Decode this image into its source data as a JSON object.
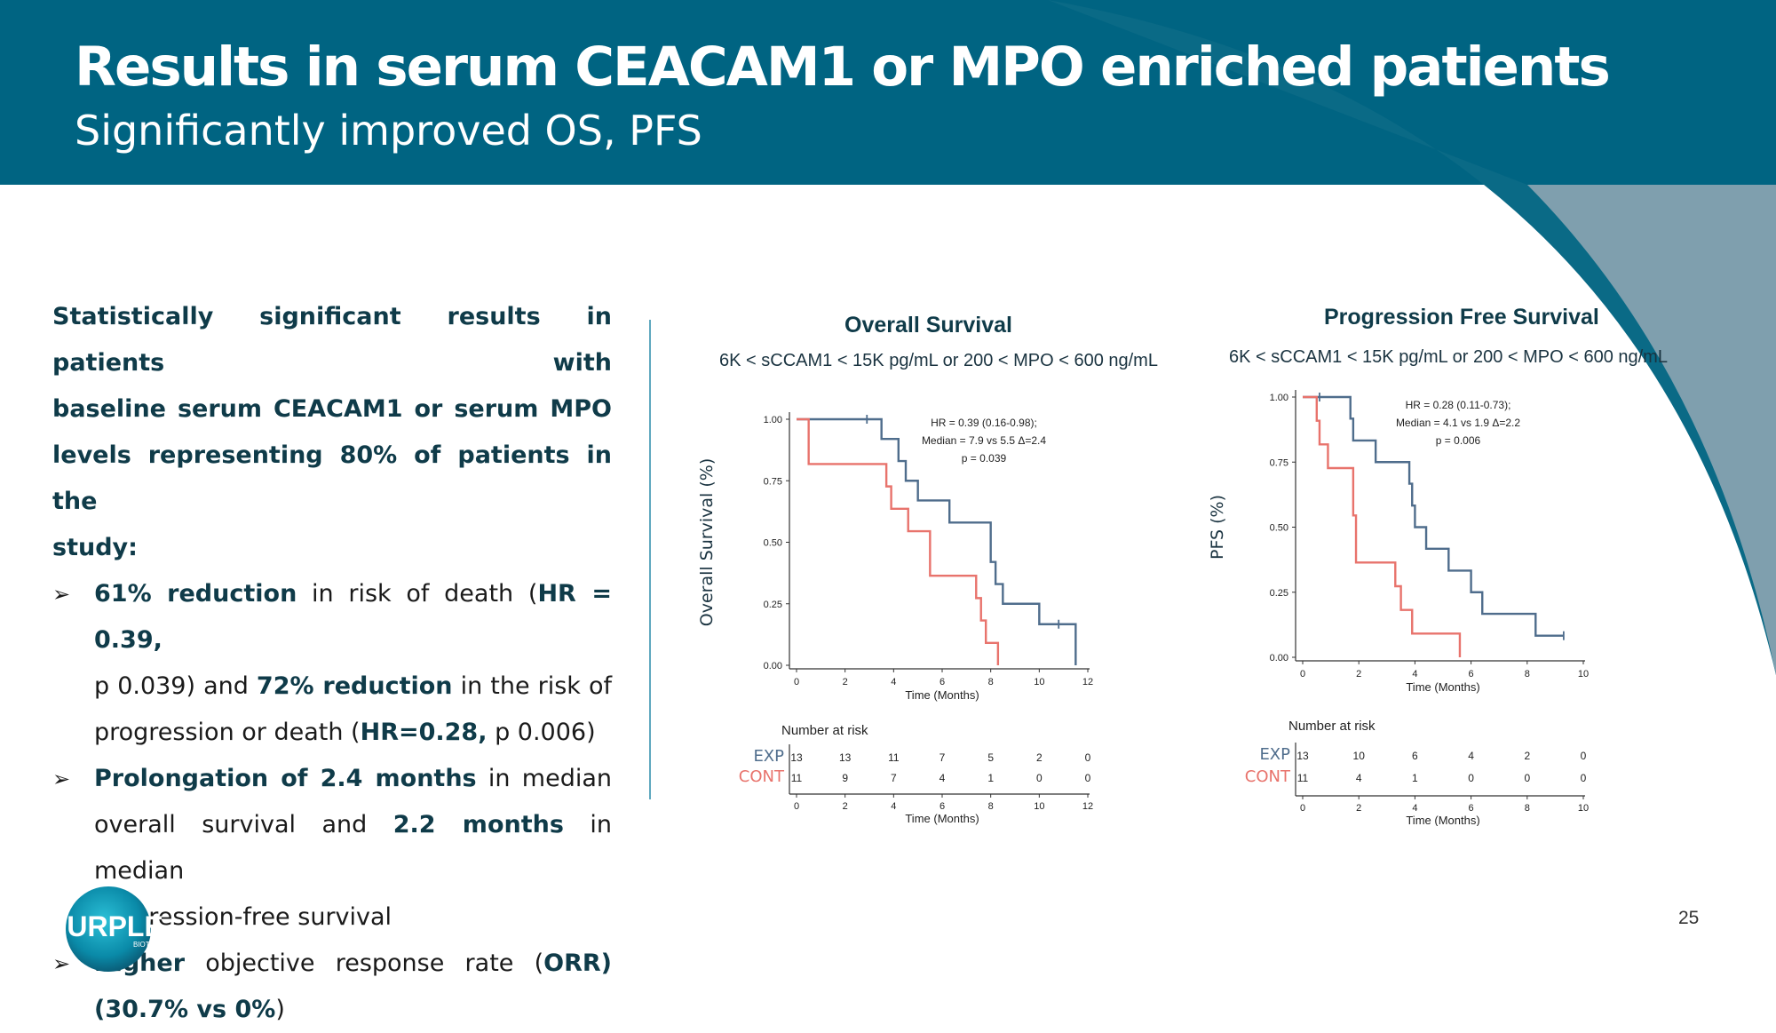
{
  "header": {
    "title": "Results in serum CEACAM1 or MPO enriched patients",
    "subtitle": "Significantly improved OS, PFS"
  },
  "left_panel": {
    "intro_lines": [
      "Statistically significant results in patients with",
      "baseline serum CEACAM1 or serum MPO",
      "levels representing 80% of patients in the",
      "study:"
    ],
    "bullet1": {
      "b1": "61% reduction",
      "t1": " in risk of death (",
      "b2": "HR = 0.39,",
      "t2": "p 0.039) and ",
      "b3": "72% reduction",
      "t3": " in the risk of",
      "t4": "progression or death (",
      "b4": "HR=0.28,",
      "t5": " p 0.006)"
    },
    "bullet2": {
      "b1": "Prolongation of 2.4 months",
      "t1": " in median",
      "t2": "overall survival and ",
      "b2": "2.2 months",
      "t3": " in median",
      "t4": "progression-free survival"
    },
    "bullet3": {
      "b1": "Higher",
      "t1": " objective response rate (",
      "b2": "ORR)",
      "b3": "(30.7% vs 0%",
      "t2": ")"
    }
  },
  "colors": {
    "header": "#006482",
    "arc": "#7f9fae",
    "exp": "#4f6d8c",
    "cont": "#e8736c",
    "divider": "#5fa8bf"
  },
  "page_number": "25",
  "logo": {
    "name": "PURPLE",
    "sub": "BIOTECH",
    "icon": "purple-biotech-logo"
  },
  "chart_data": [
    {
      "type": "line",
      "subtype": "kaplan-meier",
      "title": "Overall Survival",
      "subtitle": "6K < sCCAM1 < 15K pg/mL or 200 < MPO < 600 ng/mL",
      "xlabel": "Time (Months)",
      "ylabel": "Overall Survival (%)",
      "xlim": [
        0,
        12
      ],
      "ylim": [
        0,
        1
      ],
      "xticks": [
        "0",
        "2",
        "4",
        "6",
        "8",
        "10",
        "12"
      ],
      "yticks": [
        "0.00",
        "0.25",
        "0.50",
        "0.75",
        "1.00"
      ],
      "annotation": [
        "HR = 0.39 (0.16-0.98);",
        "Median = 7.9 vs 5.5 Δ=2.4",
        "p = 0.039"
      ],
      "series": [
        {
          "name": "EXP",
          "steps": [
            [
              0,
              1.0
            ],
            [
              3.5,
              0.92
            ],
            [
              4.2,
              0.83
            ],
            [
              4.5,
              0.75
            ],
            [
              5.0,
              0.67
            ],
            [
              6.3,
              0.58
            ],
            [
              8.0,
              0.42
            ],
            [
              8.2,
              0.33
            ],
            [
              8.5,
              0.25
            ],
            [
              10.0,
              0.167
            ],
            [
              11.5,
              0.0
            ]
          ],
          "end": 11.5,
          "censor": [
            [
              2.9,
              1.0
            ],
            [
              10.8,
              0.167
            ]
          ]
        },
        {
          "name": "CONT",
          "steps": [
            [
              0,
              1.0
            ],
            [
              0.5,
              0.818
            ],
            [
              3.7,
              0.727
            ],
            [
              3.9,
              0.636
            ],
            [
              4.6,
              0.545
            ],
            [
              5.5,
              0.364
            ],
            [
              7.4,
              0.273
            ],
            [
              7.6,
              0.182
            ],
            [
              7.8,
              0.091
            ],
            [
              8.3,
              0.0
            ]
          ],
          "end": 8.3,
          "censor": []
        }
      ],
      "risk_table": {
        "title": "Number at risk",
        "times": [
          "0",
          "2",
          "4",
          "6",
          "8",
          "10",
          "12"
        ],
        "rows": [
          {
            "label": "EXP",
            "values": [
              "13",
              "13",
              "11",
              "7",
              "5",
              "2",
              "0"
            ]
          },
          {
            "label": "CONT",
            "values": [
              "11",
              "9",
              "7",
              "4",
              "1",
              "0",
              "0"
            ]
          }
        ],
        "xlabel": "Time (Months)"
      }
    },
    {
      "type": "line",
      "subtype": "kaplan-meier",
      "title": "Progression Free Survival",
      "subtitle": "6K < sCCAM1 < 15K pg/mL or 200 < MPO < 600 ng/mL",
      "xlabel": "Time (Months)",
      "ylabel": "PFS (%)",
      "xlim": [
        0,
        10
      ],
      "ylim": [
        0,
        1
      ],
      "xticks": [
        "0",
        "2",
        "4",
        "6",
        "8",
        "10"
      ],
      "yticks": [
        "0.00",
        "0.25",
        "0.50",
        "0.75",
        "1.00"
      ],
      "annotation": [
        "HR = 0.28 (0.11-0.73);",
        "Median = 4.1 vs 1.9 Δ=2.2",
        "p = 0.006"
      ],
      "series": [
        {
          "name": "EXP",
          "steps": [
            [
              0,
              1.0
            ],
            [
              1.7,
              0.917
            ],
            [
              1.8,
              0.833
            ],
            [
              2.6,
              0.75
            ],
            [
              3.8,
              0.667
            ],
            [
              3.9,
              0.583
            ],
            [
              4.0,
              0.5
            ],
            [
              4.4,
              0.417
            ],
            [
              5.2,
              0.333
            ],
            [
              6.0,
              0.25
            ],
            [
              6.4,
              0.167
            ],
            [
              8.3,
              0.083
            ]
          ],
          "end": 9.3,
          "censor": [
            [
              0.6,
              1.0
            ],
            [
              9.3,
              0.083
            ]
          ]
        },
        {
          "name": "CONT",
          "steps": [
            [
              0,
              1.0
            ],
            [
              0.5,
              0.909
            ],
            [
              0.6,
              0.818
            ],
            [
              0.9,
              0.727
            ],
            [
              1.8,
              0.545
            ],
            [
              1.9,
              0.364
            ],
            [
              3.3,
              0.273
            ],
            [
              3.5,
              0.182
            ],
            [
              3.9,
              0.091
            ],
            [
              5.6,
              0.0
            ]
          ],
          "end": 5.6,
          "censor": []
        }
      ],
      "risk_table": {
        "title": "Number at risk",
        "times": [
          "0",
          "2",
          "4",
          "6",
          "8",
          "10"
        ],
        "rows": [
          {
            "label": "EXP",
            "values": [
              "13",
              "10",
              "6",
              "4",
              "2",
              "0"
            ]
          },
          {
            "label": "CONT",
            "values": [
              "11",
              "4",
              "1",
              "0",
              "0",
              "0"
            ]
          }
        ],
        "xlabel": "Time (Months)"
      }
    }
  ]
}
